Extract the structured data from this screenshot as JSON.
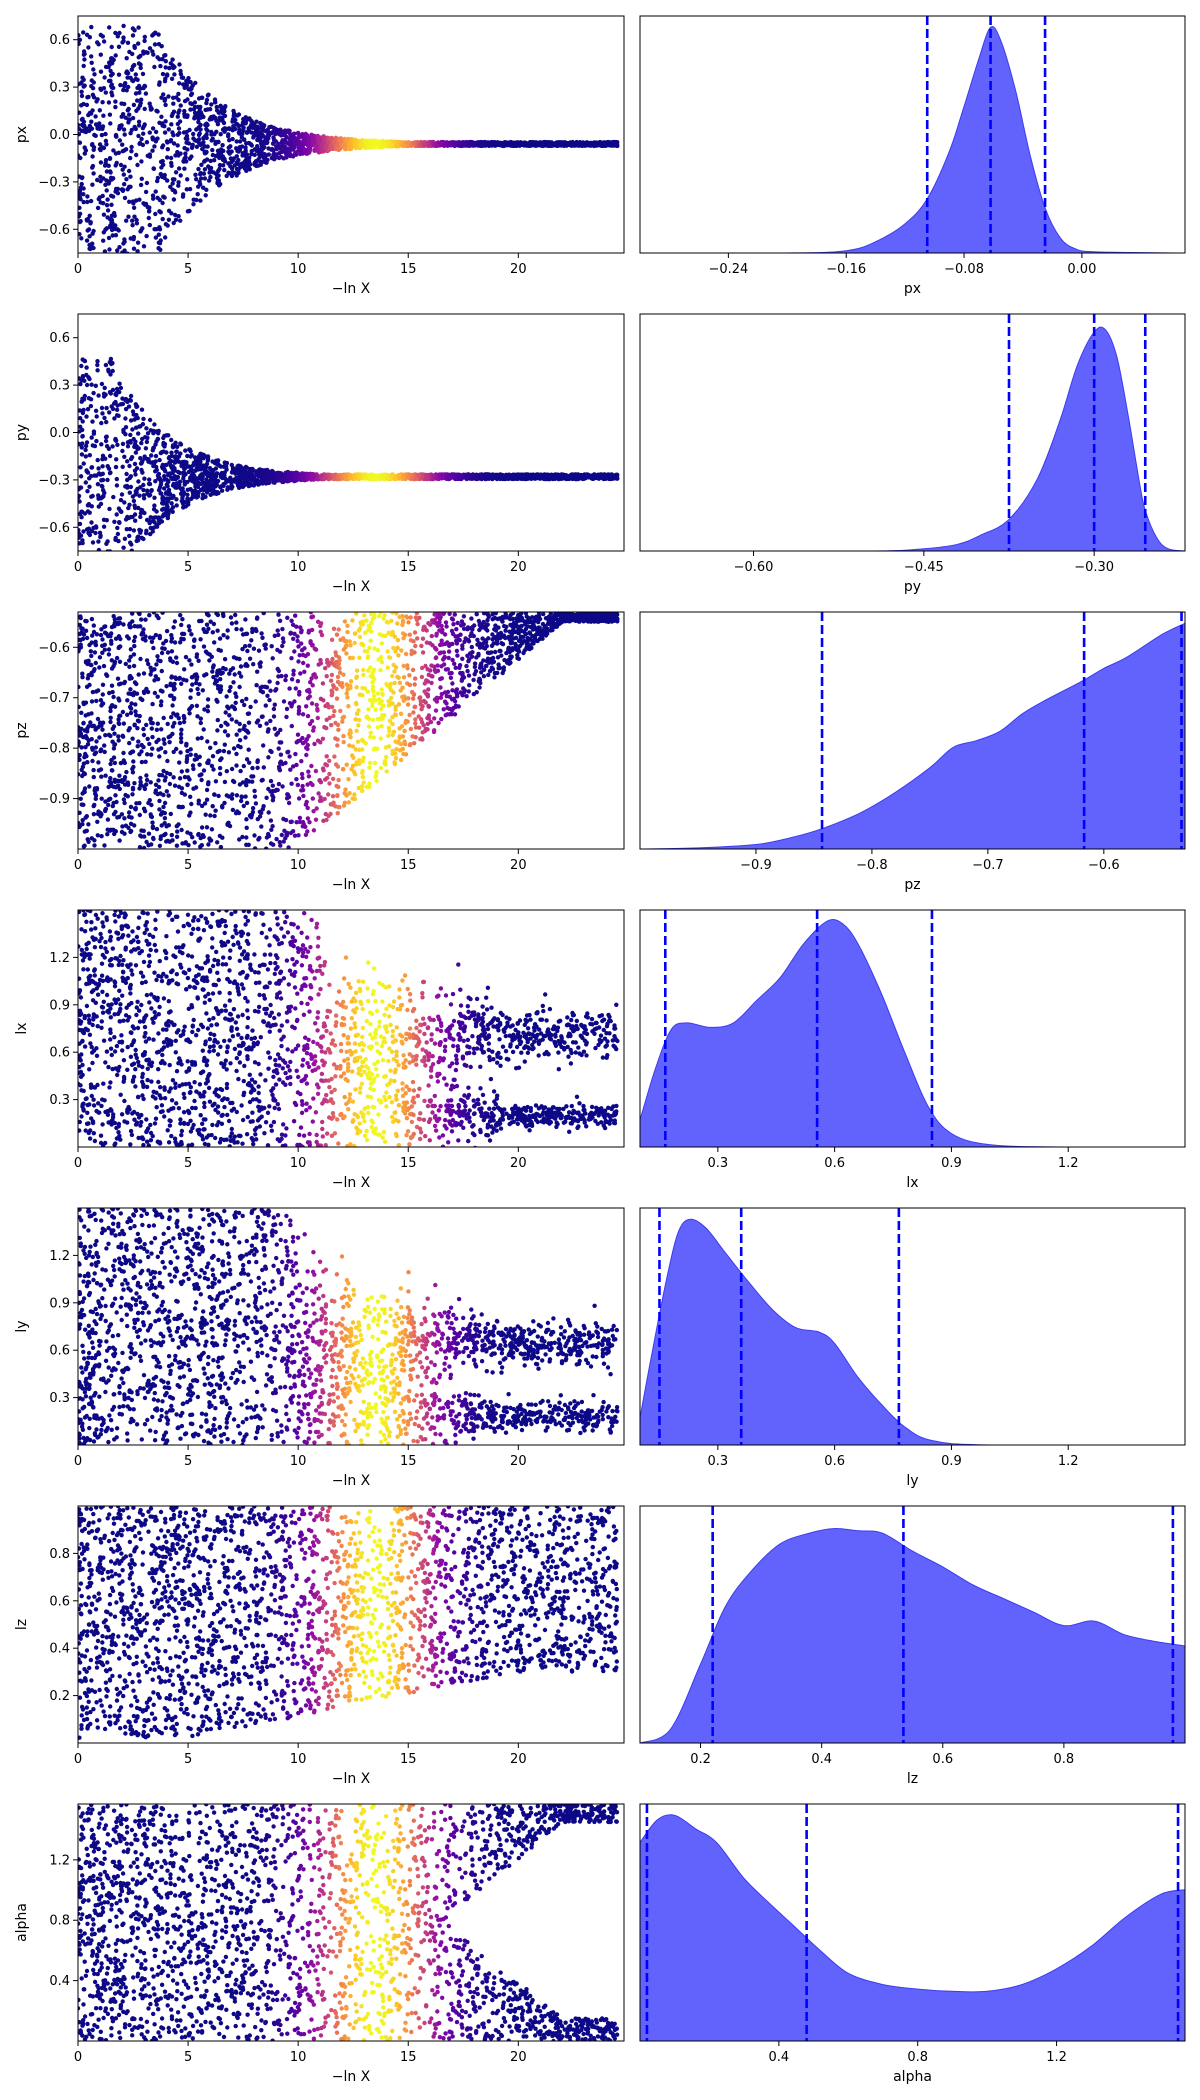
{
  "chart_data": [
    {
      "type": "scatter",
      "var": "px",
      "xlabel": "−ln X",
      "ylabel": "px",
      "xlim": [
        0,
        24.8
      ],
      "ylim": [
        -0.75,
        0.75
      ],
      "xticks": [
        0,
        5,
        10,
        15,
        20
      ],
      "yticks": [
        0.6,
        0.3,
        0.0,
        -0.3,
        -0.6
      ],
      "ytick_labels": [
        "0.6",
        "0.3",
        "0.0",
        "−0.3",
        "−0.6"
      ],
      "shape": "funnel",
      "center": -0.06,
      "spread_start": 0.75,
      "spread_end": 0.012,
      "t0": 3.5,
      "decay": 2.8
    },
    {
      "type": "area",
      "var": "px",
      "xlabel": "px",
      "xlim": [
        -0.3,
        0.07
      ],
      "xticks": [
        -0.24,
        -0.16,
        -0.08,
        0.0
      ],
      "xtick_labels": [
        "−0.24",
        "−0.16",
        "−0.08",
        "0.00"
      ],
      "quantiles": [
        -0.105,
        -0.062,
        -0.025
      ],
      "density": [
        [
          -0.3,
          0
        ],
        [
          -0.2,
          0
        ],
        [
          -0.16,
          0.01
        ],
        [
          -0.14,
          0.05
        ],
        [
          -0.12,
          0.13
        ],
        [
          -0.105,
          0.24
        ],
        [
          -0.09,
          0.45
        ],
        [
          -0.08,
          0.65
        ],
        [
          -0.07,
          0.86
        ],
        [
          -0.062,
          1.0
        ],
        [
          -0.055,
          0.94
        ],
        [
          -0.045,
          0.72
        ],
        [
          -0.035,
          0.43
        ],
        [
          -0.025,
          0.2
        ],
        [
          -0.015,
          0.07
        ],
        [
          -0.005,
          0.02
        ],
        [
          0.01,
          0.005
        ],
        [
          0.07,
          0
        ]
      ]
    },
    {
      "type": "scatter",
      "var": "py",
      "xlabel": "−ln X",
      "ylabel": "py",
      "xlim": [
        0,
        24.8
      ],
      "ylim": [
        -0.75,
        0.75
      ],
      "xticks": [
        0,
        5,
        10,
        15,
        20
      ],
      "yticks": [
        0.6,
        0.3,
        0.0,
        -0.3,
        -0.6
      ],
      "ytick_labels": [
        "0.6",
        "0.3",
        "0.0",
        "−0.3",
        "−0.6"
      ],
      "shape": "funnel",
      "center": -0.28,
      "spread_start": 0.75,
      "spread_end": 0.015,
      "t0": 1.5,
      "decay": 2.5
    },
    {
      "type": "area",
      "var": "py",
      "xlabel": "py",
      "xlim": [
        -0.7,
        -0.22
      ],
      "xticks": [
        -0.6,
        -0.45,
        -0.3
      ],
      "xtick_labels": [
        "−0.60",
        "−0.45",
        "−0.30"
      ],
      "quantiles": [
        -0.375,
        -0.3,
        -0.255
      ],
      "density": [
        [
          -0.7,
          0
        ],
        [
          -0.5,
          0
        ],
        [
          -0.45,
          0.01
        ],
        [
          -0.42,
          0.03
        ],
        [
          -0.4,
          0.07
        ],
        [
          -0.375,
          0.14
        ],
        [
          -0.35,
          0.32
        ],
        [
          -0.33,
          0.58
        ],
        [
          -0.315,
          0.82
        ],
        [
          -0.3,
          0.97
        ],
        [
          -0.29,
          0.98
        ],
        [
          -0.28,
          0.86
        ],
        [
          -0.27,
          0.6
        ],
        [
          -0.26,
          0.3
        ],
        [
          -0.255,
          0.18
        ],
        [
          -0.245,
          0.06
        ],
        [
          -0.235,
          0.01
        ],
        [
          -0.22,
          0
        ]
      ]
    },
    {
      "type": "scatter",
      "var": "pz",
      "xlabel": "−ln X",
      "ylabel": "pz",
      "xlim": [
        0,
        24.8
      ],
      "ylim": [
        -1.0,
        -0.53
      ],
      "xticks": [
        0,
        5,
        10,
        15,
        20
      ],
      "yticks": [
        -0.6,
        -0.7,
        -0.8,
        -0.9
      ],
      "ytick_labels": [
        "−0.6",
        "−0.7",
        "−0.8",
        "−0.9"
      ],
      "shape": "wedge",
      "top": -0.53,
      "bottom_start": -1.0,
      "bottom_end": -0.55,
      "t_start": 10,
      "t_end": 22
    },
    {
      "type": "area",
      "var": "pz",
      "xlabel": "pz",
      "xlim": [
        -1.0,
        -0.53
      ],
      "xticks": [
        -0.9,
        -0.8,
        -0.7,
        -0.6
      ],
      "xtick_labels": [
        "−0.9",
        "−0.8",
        "−0.7",
        "−0.6"
      ],
      "quantiles": [
        -0.843,
        -0.617,
        -0.533
      ],
      "density": [
        [
          -1.0,
          0
        ],
        [
          -0.95,
          0.005
        ],
        [
          -0.9,
          0.02
        ],
        [
          -0.87,
          0.05
        ],
        [
          -0.843,
          0.09
        ],
        [
          -0.81,
          0.16
        ],
        [
          -0.78,
          0.25
        ],
        [
          -0.75,
          0.36
        ],
        [
          -0.73,
          0.45
        ],
        [
          -0.71,
          0.48
        ],
        [
          -0.69,
          0.52
        ],
        [
          -0.67,
          0.6
        ],
        [
          -0.65,
          0.66
        ],
        [
          -0.62,
          0.74
        ],
        [
          -0.6,
          0.8
        ],
        [
          -0.58,
          0.85
        ],
        [
          -0.55,
          0.95
        ],
        [
          -0.53,
          1.0
        ]
      ]
    },
    {
      "type": "scatter",
      "var": "lx",
      "xlabel": "−ln X",
      "ylabel": "lx",
      "xlim": [
        0,
        24.8
      ],
      "ylim": [
        0,
        1.5
      ],
      "xticks": [
        0,
        5,
        10,
        15,
        20
      ],
      "yticks": [
        1.2,
        0.9,
        0.6,
        0.3
      ],
      "ytick_labels": [
        "1.2",
        "0.9",
        "0.6",
        "0.3"
      ],
      "shape": "fork",
      "branches": [
        [
          0.72,
          0.08
        ],
        [
          0.2,
          0.04
        ]
      ],
      "t_split": 11
    },
    {
      "type": "area",
      "var": "lx",
      "xlabel": "lx",
      "xlim": [
        0.1,
        1.5
      ],
      "xticks": [
        0.3,
        0.6,
        0.9,
        1.2
      ],
      "xtick_labels": [
        "0.3",
        "0.6",
        "0.9",
        "1.2"
      ],
      "quantiles": [
        0.165,
        0.555,
        0.85
      ],
      "density": [
        [
          0.1,
          0.12
        ],
        [
          0.14,
          0.35
        ],
        [
          0.18,
          0.52
        ],
        [
          0.22,
          0.55
        ],
        [
          0.28,
          0.53
        ],
        [
          0.34,
          0.55
        ],
        [
          0.4,
          0.65
        ],
        [
          0.46,
          0.75
        ],
        [
          0.52,
          0.9
        ],
        [
          0.58,
          1.0
        ],
        [
          0.62,
          0.99
        ],
        [
          0.66,
          0.9
        ],
        [
          0.72,
          0.68
        ],
        [
          0.78,
          0.42
        ],
        [
          0.84,
          0.18
        ],
        [
          0.9,
          0.06
        ],
        [
          1.0,
          0.01
        ],
        [
          1.2,
          0
        ],
        [
          1.5,
          0
        ]
      ]
    },
    {
      "type": "scatter",
      "var": "ly",
      "xlabel": "−ln X",
      "ylabel": "ly",
      "xlim": [
        0,
        24.8
      ],
      "ylim": [
        0,
        1.5
      ],
      "xticks": [
        0,
        5,
        10,
        15,
        20
      ],
      "yticks": [
        1.2,
        0.9,
        0.6,
        0.3
      ],
      "ytick_labels": [
        "1.2",
        "0.9",
        "0.6",
        "0.3"
      ],
      "shape": "fork",
      "branches": [
        [
          0.65,
          0.07
        ],
        [
          0.18,
          0.05
        ]
      ],
      "t_split": 10
    },
    {
      "type": "area",
      "var": "ly",
      "xlabel": "ly",
      "xlim": [
        0.1,
        1.5
      ],
      "xticks": [
        0.3,
        0.6,
        0.9,
        1.2
      ],
      "xtick_labels": [
        "0.3",
        "0.6",
        "0.9",
        "1.2"
      ],
      "quantiles": [
        0.15,
        0.36,
        0.765
      ],
      "density": [
        [
          0.1,
          0.12
        ],
        [
          0.13,
          0.4
        ],
        [
          0.17,
          0.75
        ],
        [
          0.2,
          0.95
        ],
        [
          0.23,
          1.0
        ],
        [
          0.27,
          0.96
        ],
        [
          0.32,
          0.85
        ],
        [
          0.38,
          0.72
        ],
        [
          0.44,
          0.6
        ],
        [
          0.5,
          0.52
        ],
        [
          0.56,
          0.5
        ],
        [
          0.6,
          0.45
        ],
        [
          0.66,
          0.3
        ],
        [
          0.72,
          0.18
        ],
        [
          0.78,
          0.08
        ],
        [
          0.85,
          0.02
        ],
        [
          1.0,
          0
        ],
        [
          1.5,
          0
        ]
      ]
    },
    {
      "type": "scatter",
      "var": "lz",
      "xlabel": "−ln X",
      "ylabel": "lz",
      "xlim": [
        0,
        24.8
      ],
      "ylim": [
        0,
        1.0
      ],
      "xticks": [
        0,
        5,
        10,
        15,
        20
      ],
      "yticks": [
        0.8,
        0.6,
        0.4,
        0.2
      ],
      "ytick_labels": [
        "0.8",
        "0.6",
        "0.4",
        "0.2"
      ],
      "shape": "band",
      "top": 1.0,
      "bottom_start": 0.02,
      "bottom_end": 0.3,
      "t_start": 5,
      "t_end": 20
    },
    {
      "type": "area",
      "var": "lz",
      "xlabel": "lz",
      "xlim": [
        0.1,
        1.0
      ],
      "xticks": [
        0.2,
        0.4,
        0.6,
        0.8
      ],
      "xtick_labels": [
        "0.2",
        "0.4",
        "0.6",
        "0.8"
      ],
      "quantiles": [
        0.22,
        0.535,
        0.98
      ],
      "density": [
        [
          0.1,
          0
        ],
        [
          0.15,
          0.06
        ],
        [
          0.2,
          0.35
        ],
        [
          0.24,
          0.6
        ],
        [
          0.28,
          0.75
        ],
        [
          0.33,
          0.88
        ],
        [
          0.38,
          0.93
        ],
        [
          0.42,
          0.95
        ],
        [
          0.46,
          0.94
        ],
        [
          0.5,
          0.93
        ],
        [
          0.55,
          0.85
        ],
        [
          0.6,
          0.78
        ],
        [
          0.65,
          0.7
        ],
        [
          0.7,
          0.64
        ],
        [
          0.75,
          0.58
        ],
        [
          0.8,
          0.52
        ],
        [
          0.85,
          0.54
        ],
        [
          0.9,
          0.48
        ],
        [
          0.95,
          0.45
        ],
        [
          1.0,
          0.43
        ]
      ]
    },
    {
      "type": "scatter",
      "var": "alpha",
      "xlabel": "−ln X",
      "ylabel": "alpha",
      "xlim": [
        0,
        24.8
      ],
      "ylim": [
        0,
        1.57
      ],
      "xticks": [
        0,
        5,
        10,
        15,
        20
      ],
      "yticks": [
        1.2,
        0.8,
        0.4
      ],
      "ytick_labels": [
        "1.2",
        "0.8",
        "0.4"
      ],
      "shape": "split",
      "t_split": 14
    },
    {
      "type": "area",
      "var": "alpha",
      "xlabel": "alpha",
      "xlim": [
        0,
        1.57
      ],
      "xticks": [
        0.4,
        0.8,
        1.2
      ],
      "xtick_labels": [
        "0.4",
        "0.8",
        "1.2"
      ],
      "quantiles": [
        0.02,
        0.48,
        1.55
      ],
      "density": [
        [
          0,
          0.88
        ],
        [
          0.05,
          0.98
        ],
        [
          0.1,
          1.0
        ],
        [
          0.16,
          0.94
        ],
        [
          0.22,
          0.88
        ],
        [
          0.3,
          0.72
        ],
        [
          0.38,
          0.6
        ],
        [
          0.45,
          0.5
        ],
        [
          0.52,
          0.4
        ],
        [
          0.6,
          0.3
        ],
        [
          0.7,
          0.25
        ],
        [
          0.8,
          0.23
        ],
        [
          0.9,
          0.22
        ],
        [
          1.0,
          0.22
        ],
        [
          1.1,
          0.25
        ],
        [
          1.2,
          0.32
        ],
        [
          1.3,
          0.42
        ],
        [
          1.4,
          0.55
        ],
        [
          1.5,
          0.65
        ],
        [
          1.57,
          0.67
        ]
      ]
    }
  ],
  "colors": {
    "density_fill": "#6262fc",
    "density_edge": "#3c3cf0",
    "quantile_line": "#0000ff",
    "axis": "#000000"
  }
}
